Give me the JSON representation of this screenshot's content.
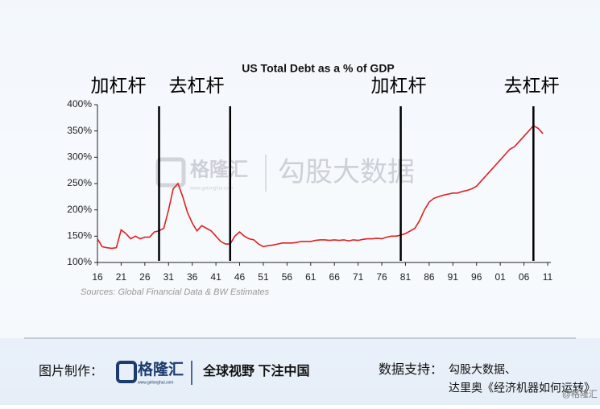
{
  "chart_data": {
    "type": "line",
    "title": "US Total Debt as a % of GDP",
    "source": "Sources: Global Financial Data & BW Estimates",
    "color": "#e02020",
    "x": [
      1916,
      1917,
      1918,
      1919,
      1920,
      1921,
      1922,
      1923,
      1924,
      1925,
      1926,
      1927,
      1928,
      1929,
      1930,
      1931,
      1932,
      1933,
      1934,
      1935,
      1936,
      1937,
      1938,
      1939,
      1940,
      1941,
      1942,
      1943,
      1944,
      1945,
      1946,
      1947,
      1948,
      1949,
      1950,
      1951,
      1952,
      1953,
      1954,
      1955,
      1956,
      1957,
      1958,
      1959,
      1960,
      1961,
      1962,
      1963,
      1964,
      1965,
      1966,
      1967,
      1968,
      1969,
      1970,
      1971,
      1972,
      1973,
      1974,
      1975,
      1976,
      1977,
      1978,
      1979,
      1980,
      1981,
      1982,
      1983,
      1984,
      1985,
      1986,
      1987,
      1988,
      1989,
      1990,
      1991,
      1992,
      1993,
      1994,
      1995,
      1996,
      1997,
      1998,
      1999,
      2000,
      2001,
      2002,
      2003,
      2004,
      2005,
      2006,
      2007,
      2008,
      2009,
      2010
    ],
    "values": [
      145,
      130,
      128,
      127,
      128,
      162,
      155,
      145,
      150,
      145,
      148,
      148,
      158,
      160,
      165,
      200,
      240,
      250,
      225,
      195,
      175,
      160,
      170,
      165,
      160,
      150,
      140,
      135,
      135,
      150,
      158,
      150,
      145,
      143,
      135,
      130,
      132,
      133,
      135,
      137,
      137,
      137,
      138,
      140,
      140,
      140,
      142,
      143,
      143,
      142,
      143,
      142,
      143,
      141,
      143,
      142,
      144,
      145,
      145,
      146,
      145,
      148,
      150,
      150,
      152,
      155,
      160,
      165,
      180,
      200,
      215,
      222,
      225,
      228,
      230,
      232,
      232,
      235,
      237,
      240,
      245,
      255,
      265,
      275,
      285,
      295,
      305,
      315,
      320,
      330,
      340,
      350,
      360,
      355,
      345
    ],
    "xlim": [
      1916,
      2012
    ],
    "xticks": [
      {
        "value": 1916,
        "label": "16"
      },
      {
        "value": 1921,
        "label": "21"
      },
      {
        "value": 1926,
        "label": "26"
      },
      {
        "value": 1931,
        "label": "31"
      },
      {
        "value": 1936,
        "label": "36"
      },
      {
        "value": 1941,
        "label": "41"
      },
      {
        "value": 1946,
        "label": "46"
      },
      {
        "value": 1951,
        "label": "51"
      },
      {
        "value": 1956,
        "label": "56"
      },
      {
        "value": 1961,
        "label": "61"
      },
      {
        "value": 1966,
        "label": "66"
      },
      {
        "value": 1971,
        "label": "71"
      },
      {
        "value": 1976,
        "label": "76"
      },
      {
        "value": 1981,
        "label": "81"
      },
      {
        "value": 1986,
        "label": "86"
      },
      {
        "value": 1991,
        "label": "91"
      },
      {
        "value": 1996,
        "label": "96"
      },
      {
        "value": 2001,
        "label": "01"
      },
      {
        "value": 2006,
        "label": "06"
      },
      {
        "value": 2011,
        "label": "11"
      }
    ],
    "ylim": [
      100,
      400
    ],
    "yticks": [
      {
        "value": 100,
        "label": "100%"
      },
      {
        "value": 150,
        "label": "150%"
      },
      {
        "value": 200,
        "label": "200%"
      },
      {
        "value": 250,
        "label": "250%"
      },
      {
        "value": 300,
        "label": "300%"
      },
      {
        "value": 350,
        "label": "350%"
      },
      {
        "value": 400,
        "label": "400%"
      }
    ],
    "dividers": [
      1929,
      1944,
      1980,
      2008
    ],
    "phase_labels": [
      "加杠杆",
      "去杠杆",
      "加杠杆",
      "去杠杆"
    ]
  },
  "watermark": {
    "brand": "格隆汇",
    "site": "www.gelonghui.com",
    "partner": "勾股大数据"
  },
  "footer": {
    "made_by": "图片制作：",
    "brand": "格隆汇",
    "site": "www.gelonghui.com",
    "slogan": "全球视野 下注中国",
    "support_label": "数据支持：",
    "support_line1": "勾股大数据、",
    "support_line2": "达里奥《经济机器如何运转》",
    "corner": "@格隆汇"
  }
}
